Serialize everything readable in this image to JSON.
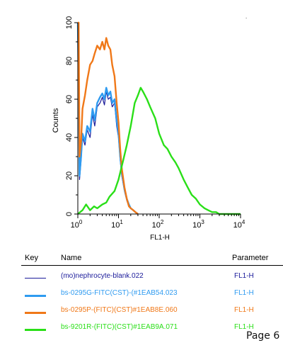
{
  "chart_data": {
    "type": "line",
    "title": "",
    "xlabel": "FL1-H",
    "ylabel": "Counts",
    "x_scale": "log",
    "xlim": [
      1,
      10000
    ],
    "ylim": [
      0,
      100
    ],
    "x_ticks": [
      {
        "value": 1,
        "base": "10",
        "exp": "0"
      },
      {
        "value": 10,
        "base": "10",
        "exp": "1"
      },
      {
        "value": 100,
        "base": "10",
        "exp": "2"
      },
      {
        "value": 1000,
        "base": "10",
        "exp": "3"
      },
      {
        "value": 10000,
        "base": "10",
        "exp": "4"
      }
    ],
    "y_ticks": [
      "0",
      "20",
      "40",
      "60",
      "80",
      "100"
    ],
    "grid": false,
    "series": [
      {
        "name": "(mo)nephrocyte-blank.022",
        "color": "#1a1a9a",
        "x": [
          1.0,
          1.05,
          1.1,
          1.2,
          1.3,
          1.5,
          1.7,
          2.0,
          2.3,
          2.6,
          3.0,
          3.5,
          4.0,
          4.5,
          5.0,
          5.6,
          6.3,
          7.0,
          8.0,
          9.0,
          10,
          11,
          12,
          14,
          16,
          18,
          20,
          23,
          26,
          30
        ],
        "y": [
          100,
          60,
          18,
          28,
          40,
          36,
          44,
          40,
          52,
          46,
          56,
          58,
          61,
          57,
          64,
          60,
          61,
          56,
          58,
          46,
          40,
          28,
          20,
          12,
          7,
          4,
          3,
          2,
          1,
          0
        ]
      },
      {
        "name": "bs-0295G-FITC(CST)-(#1EAB54.023",
        "color": "#2f9bf0",
        "x": [
          1.0,
          1.05,
          1.1,
          1.2,
          1.3,
          1.5,
          1.7,
          2.0,
          2.3,
          2.6,
          3.0,
          3.5,
          4.0,
          4.5,
          5.0,
          5.6,
          6.3,
          7.0,
          8.0,
          9.0,
          10,
          11,
          12,
          14,
          16,
          18,
          20,
          23,
          26,
          30
        ],
        "y": [
          100,
          62,
          20,
          30,
          42,
          38,
          46,
          43,
          55,
          49,
          58,
          61,
          63,
          60,
          66,
          62,
          64,
          58,
          60,
          49,
          42,
          30,
          22,
          13,
          8,
          5,
          3,
          2,
          1,
          0
        ]
      },
      {
        "name": "bs-0295P-(FITC)(CST)#1EAB8E.060",
        "color": "#f07818",
        "x": [
          1.0,
          1.05,
          1.1,
          1.2,
          1.3,
          1.5,
          1.7,
          2.0,
          2.3,
          2.6,
          3.0,
          3.5,
          4.0,
          4.5,
          5.0,
          5.6,
          6.3,
          7.0,
          8.0,
          9.0,
          10,
          11,
          12,
          14,
          16,
          18,
          20,
          23,
          26,
          30
        ],
        "y": [
          100,
          100,
          30,
          38,
          55,
          62,
          70,
          78,
          80,
          84,
          88,
          86,
          90,
          86,
          92,
          88,
          86,
          78,
          72,
          58,
          48,
          34,
          24,
          14,
          8,
          4,
          3,
          2,
          1,
          0
        ]
      },
      {
        "name": "bs-9201R-(FITC)(CST)#1EAB9A.071",
        "color": "#2adf18",
        "x": [
          1.0,
          1.3,
          1.6,
          2.0,
          2.5,
          3.0,
          4.0,
          5.0,
          6.0,
          8.0,
          10,
          13,
          16,
          20,
          25,
          30,
          35,
          40,
          50,
          60,
          80,
          100,
          130,
          160,
          200,
          250,
          300,
          400,
          500,
          630,
          800,
          1000,
          1300,
          1600,
          2000,
          2500,
          3000,
          4000,
          5000,
          10000
        ],
        "y": [
          0,
          2,
          5,
          2,
          4,
          3,
          5,
          6,
          9,
          12,
          18,
          28,
          36,
          46,
          58,
          62,
          66,
          64,
          60,
          56,
          50,
          42,
          36,
          34,
          30,
          27,
          24,
          18,
          14,
          10,
          8,
          5,
          3,
          2,
          1,
          1,
          0,
          0,
          0,
          0
        ]
      }
    ]
  },
  "key_table": {
    "headers": {
      "key": "Key",
      "name": "Name",
      "parameter": "Parameter"
    },
    "rows": [
      {
        "name": "(mo)nephrocyte-blank.022",
        "parameter": "FL1-H",
        "color": "#1a1a9a",
        "weight": "thin"
      },
      {
        "name": "bs-0295G-FITC(CST)-(#1EAB54.023",
        "parameter": "FL1-H",
        "color": "#2f9bf0",
        "weight": "thick"
      },
      {
        "name": "bs-0295P-(FITC)(CST)#1EAB8E.060",
        "parameter": "FL1-H",
        "color": "#f07818",
        "weight": "thick"
      },
      {
        "name": "bs-9201R-(FITC)(CST)#1EAB9A.071",
        "parameter": "FL1-H",
        "color": "#2adf18",
        "weight": "thick"
      }
    ]
  },
  "page_label": "Page 6"
}
